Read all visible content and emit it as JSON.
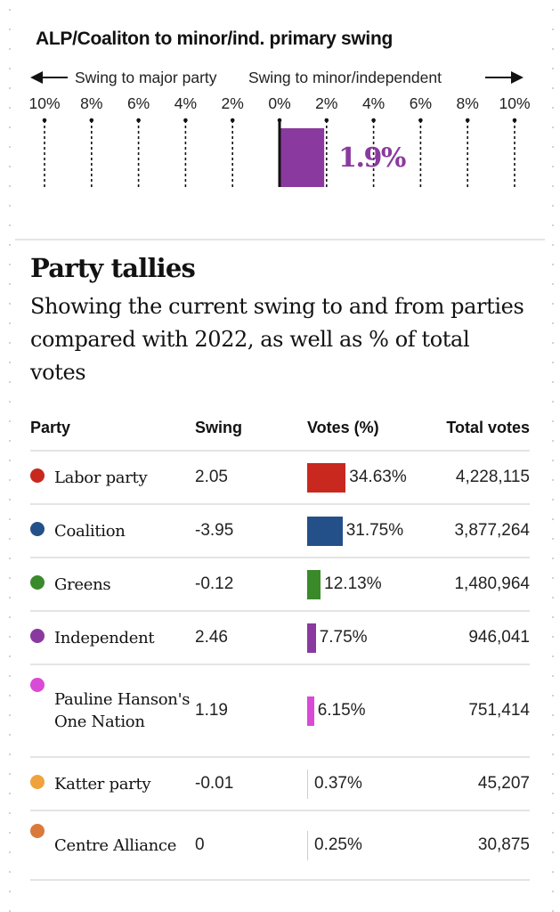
{
  "swing_chart": {
    "title": "ALP/Coaliton to minor/ind. primary swing",
    "left_label": "Swing to major party",
    "right_label": "Swing to minor/independent",
    "ticks": [
      "10%",
      "8%",
      "6%",
      "4%",
      "2%",
      "0%",
      "2%",
      "4%",
      "6%",
      "8%",
      "10%"
    ],
    "value_label": "1.9%",
    "color": "#8a3a9e"
  },
  "tallies": {
    "title": "Party tallies",
    "subtitle": "Showing the current swing to and from parties compared with 2022, as well as % of total votes",
    "headers": {
      "party": "Party",
      "swing": "Swing",
      "votes": "Votes (%)",
      "total": "Total votes"
    },
    "rows": [
      {
        "party": "Labor party",
        "swing": "2.05",
        "votes_pct": "34.63%",
        "total": "4,228,115",
        "color": "#c8281e"
      },
      {
        "party": "Coalition",
        "swing": "-3.95",
        "votes_pct": "31.75%",
        "total": "3,877,264",
        "color": "#245089"
      },
      {
        "party": "Greens",
        "swing": "-0.12",
        "votes_pct": "12.13%",
        "total": "1,480,964",
        "color": "#3a8a2a"
      },
      {
        "party": "Independent",
        "swing": "2.46",
        "votes_pct": "7.75%",
        "total": "946,041",
        "color": "#8a3a9e"
      },
      {
        "party": "Pauline Hanson's One Nation",
        "swing": "1.19",
        "votes_pct": "6.15%",
        "total": "751,414",
        "color": "#d94ad6"
      },
      {
        "party": "Katter party",
        "swing": "-0.01",
        "votes_pct": "0.37%",
        "total": "45,207",
        "color": "#f0a23c"
      },
      {
        "party": "Centre Alliance",
        "swing": "0",
        "votes_pct": "0.25%",
        "total": "30,875",
        "color": "#d97a3a"
      }
    ]
  },
  "chart_data": [
    {
      "type": "bar",
      "title": "ALP/Coaliton to minor/ind. primary swing",
      "orientation": "horizontal",
      "xlabel_left": "Swing to major party",
      "xlabel_right": "Swing to minor/independent",
      "xlim": [
        -10,
        10
      ],
      "tick_values": [
        -10,
        -8,
        -6,
        -4,
        -2,
        0,
        2,
        4,
        6,
        8,
        10
      ],
      "tick_labels": [
        "10%",
        "8%",
        "6%",
        "4%",
        "2%",
        "0%",
        "2%",
        "4%",
        "6%",
        "8%",
        "10%"
      ],
      "categories": [
        "Swing to minor/independent"
      ],
      "values": [
        1.9
      ],
      "data_labels": [
        "1.9%"
      ],
      "grid": true
    },
    {
      "type": "table",
      "title": "Party tallies",
      "columns": [
        "Party",
        "Swing",
        "Votes (%)",
        "Total votes"
      ],
      "categories": [
        "Labor party",
        "Coalition",
        "Greens",
        "Independent",
        "Pauline Hanson's One Nation",
        "Katter party",
        "Centre Alliance"
      ],
      "series": [
        {
          "name": "Swing",
          "values": [
            2.05,
            -3.95,
            -0.12,
            2.46,
            1.19,
            -0.01,
            0
          ]
        },
        {
          "name": "Votes (%)",
          "values": [
            34.63,
            31.75,
            12.13,
            7.75,
            6.15,
            0.37,
            0.25
          ]
        },
        {
          "name": "Total votes",
          "values": [
            4228115,
            3877264,
            1480964,
            946041,
            751414,
            45207,
            30875
          ]
        }
      ]
    }
  ]
}
